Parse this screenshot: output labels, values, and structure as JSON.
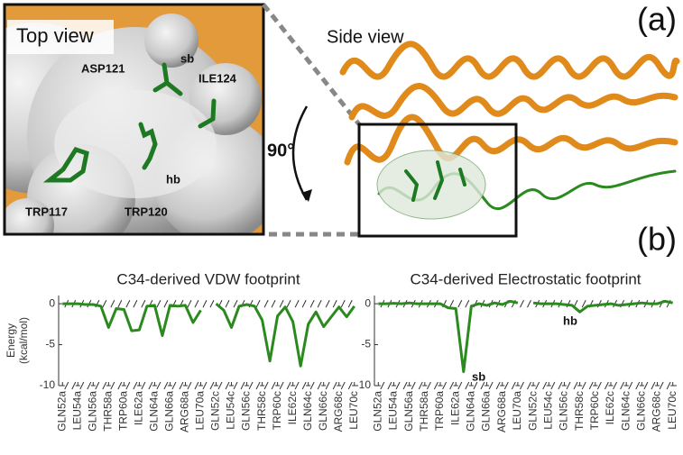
{
  "figure": {
    "panel_a": "(a)",
    "panel_b": "(b)",
    "top_view": "Top view",
    "side_view": "Side view",
    "rotation": "90°",
    "residues": [
      "ASP121",
      "ILE124",
      "TRP117",
      "TRP120"
    ],
    "top_sb": "sb",
    "top_hb": "hb"
  },
  "chart_data": [
    {
      "type": "line",
      "title": "C34-derived VDW footprint",
      "ylabel": [
        "Energy",
        "(kcal/mol)"
      ],
      "categories": [
        "GLN52a",
        null,
        "LEU54a",
        null,
        "GLN56a",
        null,
        "THR58a",
        null,
        "TRP60a",
        null,
        "ILE62a",
        null,
        "GLN64a",
        null,
        "GLN66a",
        null,
        "ARG68a",
        null,
        "LEU70a",
        null,
        "GLN52c",
        null,
        "LEU54c",
        null,
        "GLN56c",
        null,
        "THR58c",
        null,
        "TRP60c",
        null,
        "ILE62c",
        null,
        "GLN64c",
        null,
        "GLN66c",
        null,
        "ARG68c",
        null,
        "LEU70c"
      ],
      "series": [
        {
          "color": "#2a8a1e",
          "values": [
            0,
            0,
            0,
            -0.1,
            -0.1,
            -0.3,
            -2.9,
            -0.6,
            -0.7,
            -3.3,
            -3.2,
            -0.3,
            -0.2,
            -3.9,
            -0.2,
            -0.3,
            -0.2,
            -2.3,
            -0.8,
            null,
            0,
            -0.8,
            -2.9,
            -0.3,
            -0.1,
            -0.3,
            -2.0,
            -7.0,
            -1.5,
            -0.4,
            -2.2,
            -7.6,
            -2.5,
            -1.0,
            -2.8,
            -1.6,
            -0.4,
            -1.6,
            -0.3
          ]
        }
      ],
      "ylim": [
        -10,
        1
      ],
      "yticks": [
        0,
        -5,
        -10
      ],
      "annotations": []
    },
    {
      "type": "line",
      "title": "C34-derived Electrostatic footprint",
      "categories": [
        "GLN52a",
        null,
        "LEU54a",
        null,
        "GLN56a",
        null,
        "THR58a",
        null,
        "TRP60a",
        null,
        "ILE62a",
        null,
        "GLN64a",
        null,
        "GLN66a",
        null,
        "ARG68a",
        null,
        "LEU70a",
        null,
        "GLN52c",
        null,
        "LEU54c",
        null,
        "GLN56c",
        null,
        "THR58c",
        null,
        "TRP60c",
        null,
        "ILE62c",
        null,
        "GLN64c",
        null,
        "GLN66c",
        null,
        "ARG68c",
        null,
        "LEU70c"
      ],
      "series": [
        {
          "color": "#2a8a1e",
          "values": [
            0,
            0,
            0.05,
            0,
            0.1,
            0,
            0,
            0,
            0,
            -0.5,
            -0.6,
            -8.3,
            -0.3,
            0,
            -0.2,
            0.1,
            -0.1,
            0.3,
            0.1,
            null,
            0.1,
            0,
            0,
            0,
            -0.1,
            -0.2,
            -1.0,
            -0.3,
            -0.2,
            -0.1,
            0,
            -0.2,
            -0.1,
            0,
            0.1,
            0,
            0,
            0.3,
            0.1
          ]
        }
      ],
      "ylim": [
        -10,
        1
      ],
      "yticks": [
        0,
        -5,
        -10
      ],
      "annotations": [
        "sb",
        "hb"
      ]
    }
  ]
}
